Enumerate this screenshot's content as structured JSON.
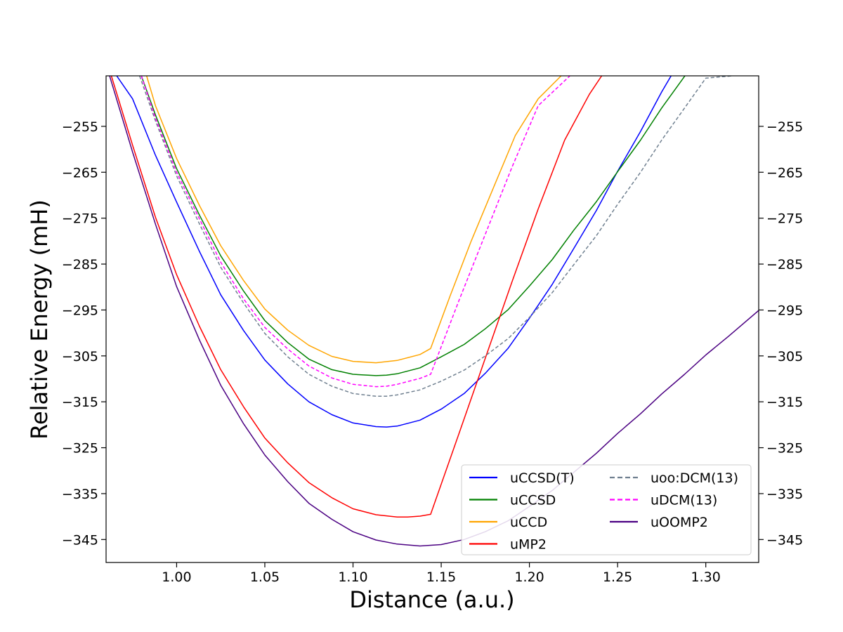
{
  "chart_data": {
    "type": "line",
    "title": "",
    "xlabel": "Distance (a.u.)",
    "ylabel": "Relative Energy (mH)",
    "xlim": [
      0.96,
      1.33
    ],
    "ylim": [
      -350,
      -244
    ],
    "xticks": [
      1.0,
      1.05,
      1.1,
      1.15,
      1.2,
      1.25,
      1.3
    ],
    "xtick_labels": [
      "1.00",
      "1.05",
      "1.10",
      "1.15",
      "1.20",
      "1.25",
      "1.30"
    ],
    "yticks": [
      -255,
      -265,
      -275,
      -285,
      -295,
      -305,
      -315,
      -325,
      -335,
      -345
    ],
    "ytick_labels": [
      "−255",
      "−265",
      "−275",
      "−285",
      "−295",
      "−305",
      "−315",
      "−325",
      "−335",
      "−345"
    ],
    "right_y_axis_labels": true,
    "grid": false,
    "legend_placement": "lower-right",
    "legend_columns": 2,
    "series": [
      {
        "name": "uCCSD(T)",
        "color": "#0000ff",
        "dashed": false,
        "x": [
          0.966,
          0.975,
          0.988,
          1.0,
          1.013,
          1.025,
          1.038,
          1.05,
          1.063,
          1.075,
          1.088,
          1.1,
          1.113,
          1.119,
          1.125,
          1.138,
          1.15,
          1.163,
          1.175,
          1.188,
          1.2,
          1.213,
          1.225,
          1.238,
          1.25,
          1.263,
          1.275,
          1.288,
          1.3,
          1.313,
          1.33
        ],
        "y": [
          -244,
          -249,
          -261.3,
          -271.5,
          -282.3,
          -291.7,
          -299.5,
          -305.9,
          -311.1,
          -315.0,
          -317.8,
          -319.6,
          -320.4,
          -320.5,
          -320.3,
          -319.0,
          -316.6,
          -313.2,
          -308.8,
          -303.3,
          -296.8,
          -289.4,
          -281.7,
          -273.3,
          -264.8,
          -256.1,
          -247.5,
          -239,
          -231,
          -223,
          -244
        ]
      },
      {
        "name": "uCCSD",
        "color": "#008000",
        "dashed": false,
        "x": [
          0.98,
          0.988,
          1.0,
          1.013,
          1.025,
          1.038,
          1.05,
          1.063,
          1.075,
          1.088,
          1.1,
          1.113,
          1.119,
          1.125,
          1.138,
          1.15,
          1.163,
          1.175,
          1.188,
          1.2,
          1.213,
          1.225,
          1.238,
          1.25,
          1.263,
          1.275,
          1.288,
          1.3,
          1.31
        ],
        "y": [
          -244,
          -252.5,
          -264.2,
          -274.4,
          -283.2,
          -290.9,
          -297.3,
          -302.1,
          -305.7,
          -308.0,
          -309.0,
          -309.3,
          -309.2,
          -308.9,
          -307.6,
          -305.2,
          -302.5,
          -299.1,
          -294.9,
          -289.8,
          -284.0,
          -277.7,
          -271.4,
          -264.9,
          -258.0,
          -251.0,
          -244.1,
          -237,
          -244
        ]
      },
      {
        "name": "uCCD",
        "color": "#ffa500",
        "dashed": false,
        "x": [
          0.983,
          0.988,
          1.0,
          1.013,
          1.025,
          1.038,
          1.05,
          1.063,
          1.075,
          1.088,
          1.1,
          1.113,
          1.125,
          1.138,
          1.144,
          1.155,
          1.167,
          1.18,
          1.192,
          1.205,
          1.218
        ],
        "y": [
          -244,
          -250.5,
          -262.0,
          -272.3,
          -281.0,
          -288.6,
          -294.8,
          -299.4,
          -302.7,
          -305.1,
          -306.2,
          -306.5,
          -306.0,
          -304.7,
          -303.4,
          -292.0,
          -280.0,
          -268.0,
          -257.0,
          -249.0,
          -244
        ]
      },
      {
        "name": "uMP2",
        "color": "#ff0000",
        "dashed": false,
        "x": [
          0.963,
          0.975,
          0.988,
          1.0,
          1.013,
          1.025,
          1.038,
          1.05,
          1.063,
          1.075,
          1.088,
          1.1,
          1.113,
          1.125,
          1.131,
          1.138,
          1.144,
          1.16,
          1.175,
          1.19,
          1.205,
          1.22,
          1.234,
          1.241
        ],
        "y": [
          -244,
          -259.1,
          -274.8,
          -287.3,
          -298.6,
          -308.0,
          -316.1,
          -322.9,
          -328.3,
          -332.6,
          -335.9,
          -338.3,
          -339.6,
          -340.1,
          -340.1,
          -339.9,
          -339.5,
          -322.0,
          -305.5,
          -289.0,
          -273.0,
          -258.0,
          -248.0,
          -244
        ]
      },
      {
        "name": "uoo:DCM(13)",
        "color": "#708090",
        "dashed": true,
        "x": [
          0.979,
          0.988,
          1.0,
          1.013,
          1.025,
          1.038,
          1.05,
          1.063,
          1.075,
          1.088,
          1.1,
          1.113,
          1.119,
          1.125,
          1.138,
          1.15,
          1.163,
          1.175,
          1.188,
          1.2,
          1.213,
          1.225,
          1.238,
          1.25,
          1.263,
          1.275,
          1.288,
          1.3,
          1.315
        ],
        "y": [
          -244,
          -253.8,
          -265.8,
          -276.3,
          -285.7,
          -293.5,
          -300.1,
          -305.2,
          -309.0,
          -311.6,
          -313.2,
          -313.8,
          -313.8,
          -313.5,
          -312.4,
          -310.5,
          -308.1,
          -305.0,
          -301.2,
          -296.6,
          -291.2,
          -285.2,
          -278.8,
          -272.0,
          -265.0,
          -258.0,
          -251.0,
          -244.5,
          -244
        ]
      },
      {
        "name": "uDCM(13)",
        "color": "#ff00ff",
        "dashed": true,
        "x": [
          0.98,
          0.988,
          1.0,
          1.013,
          1.025,
          1.038,
          1.05,
          1.063,
          1.075,
          1.088,
          1.1,
          1.113,
          1.119,
          1.125,
          1.138,
          1.144,
          1.16,
          1.175,
          1.19,
          1.205,
          1.223
        ],
        "y": [
          -244,
          -253.2,
          -265.0,
          -275.2,
          -284.6,
          -292.6,
          -298.8,
          -303.5,
          -307.2,
          -309.8,
          -311.2,
          -311.7,
          -311.6,
          -311.2,
          -309.9,
          -309.0,
          -293.0,
          -278.5,
          -264.0,
          -250.5,
          -244
        ]
      },
      {
        "name": "uOOMP2",
        "color": "#4b0082",
        "dashed": false,
        "x": [
          0.962,
          0.975,
          0.988,
          1.0,
          1.013,
          1.025,
          1.038,
          1.05,
          1.063,
          1.075,
          1.088,
          1.1,
          1.113,
          1.125,
          1.138,
          1.15,
          1.163,
          1.175,
          1.188,
          1.2,
          1.213,
          1.225,
          1.238,
          1.25,
          1.263,
          1.275,
          1.288,
          1.3,
          1.313,
          1.33
        ],
        "y": [
          -244,
          -260.6,
          -276.3,
          -289.9,
          -301.6,
          -311.4,
          -319.8,
          -326.6,
          -332.4,
          -337.1,
          -340.6,
          -343.3,
          -345.1,
          -346.0,
          -346.4,
          -346.1,
          -345.0,
          -343.3,
          -340.9,
          -337.8,
          -334.3,
          -330.4,
          -326.2,
          -321.9,
          -317.6,
          -313.3,
          -309.0,
          -304.8,
          -300.7,
          -295.1
        ]
      }
    ]
  }
}
